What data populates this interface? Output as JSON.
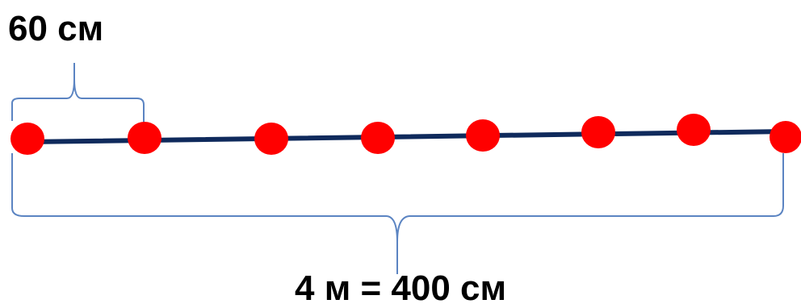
{
  "labels": {
    "segment": "60 см",
    "total": "4 м = 400 см"
  },
  "colors": {
    "line": "#0f2a5c",
    "dot": "#ff0000",
    "bracket": "#5b84c2",
    "text": "#000000"
  },
  "dot_count": 8
}
